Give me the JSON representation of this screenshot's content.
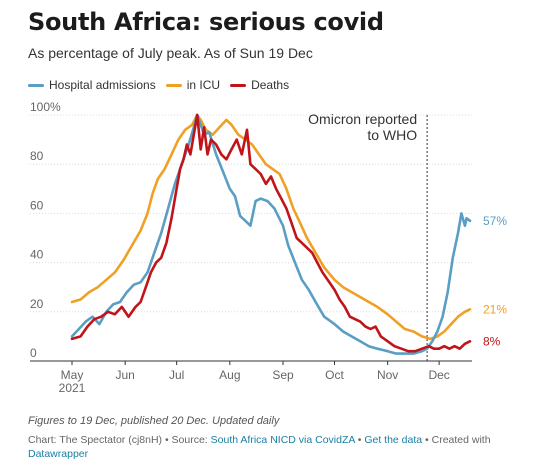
{
  "title": "South Africa: serious covid",
  "subtitle": "As percentage of July peak. As of Sun 19 Dec",
  "footer": {
    "note": "Figures to 19 Dec, published 20 Dec. Updated daily",
    "chart_by": "Chart: The Spectator (cj8nH)",
    "sep1": " • Source: ",
    "source": "South Africa NICD via CovidZA",
    "sep2": " • ",
    "get_data": "Get the data",
    "sep3": " • Created with ",
    "datawrapper": "Datawrapper"
  },
  "chart_data": {
    "type": "line",
    "xlabel": "",
    "ylabel": "",
    "x_range": [
      "2021-05-01",
      "2021-12-19"
    ],
    "ylim": [
      0,
      100
    ],
    "y_ticks": [
      0,
      20,
      40,
      60,
      80,
      100
    ],
    "y_tick_labels": [
      "0",
      "20",
      "40",
      "60",
      "80",
      "100%"
    ],
    "x_ticks": [
      {
        "date": "2021-05-01",
        "label": "May",
        "sublabel": "2021"
      },
      {
        "date": "2021-06-01",
        "label": "Jun",
        "sublabel": ""
      },
      {
        "date": "2021-07-01",
        "label": "Jul",
        "sublabel": ""
      },
      {
        "date": "2021-08-01",
        "label": "Aug",
        "sublabel": ""
      },
      {
        "date": "2021-09-01",
        "label": "Sep",
        "sublabel": ""
      },
      {
        "date": "2021-10-01",
        "label": "Oct",
        "sublabel": ""
      },
      {
        "date": "2021-11-01",
        "label": "Nov",
        "sublabel": ""
      },
      {
        "date": "2021-12-01",
        "label": "Dec",
        "sublabel": ""
      }
    ],
    "grid": "horizontal",
    "legend_position": "top-left",
    "annotation": {
      "date": "2021-11-24",
      "text_line1": "Omicron reported",
      "text_line2": "to WHO"
    },
    "series": [
      {
        "name": "Hospital admissions",
        "color": "#5a9ec4",
        "end_label": "57%",
        "points": [
          [
            "2021-05-01",
            10
          ],
          [
            "2021-05-05",
            13
          ],
          [
            "2021-05-09",
            16
          ],
          [
            "2021-05-13",
            18
          ],
          [
            "2021-05-17",
            15
          ],
          [
            "2021-05-21",
            20
          ],
          [
            "2021-05-25",
            23
          ],
          [
            "2021-05-29",
            24
          ],
          [
            "2021-06-02",
            28
          ],
          [
            "2021-06-06",
            31
          ],
          [
            "2021-06-10",
            32
          ],
          [
            "2021-06-14",
            36
          ],
          [
            "2021-06-18",
            44
          ],
          [
            "2021-06-22",
            52
          ],
          [
            "2021-06-26",
            62
          ],
          [
            "2021-06-30",
            72
          ],
          [
            "2021-07-04",
            80
          ],
          [
            "2021-07-08",
            88
          ],
          [
            "2021-07-11",
            95
          ],
          [
            "2021-07-13",
            100
          ],
          [
            "2021-07-15",
            96
          ],
          [
            "2021-07-17",
            92
          ],
          [
            "2021-07-20",
            93
          ],
          [
            "2021-07-24",
            84
          ],
          [
            "2021-07-28",
            77
          ],
          [
            "2021-08-01",
            70
          ],
          [
            "2021-08-04",
            67
          ],
          [
            "2021-08-07",
            59
          ],
          [
            "2021-08-10",
            57
          ],
          [
            "2021-08-13",
            55
          ],
          [
            "2021-08-16",
            65
          ],
          [
            "2021-08-19",
            66
          ],
          [
            "2021-08-23",
            65
          ],
          [
            "2021-08-27",
            62
          ],
          [
            "2021-09-01",
            55
          ],
          [
            "2021-09-04",
            47
          ],
          [
            "2021-09-08",
            40
          ],
          [
            "2021-09-12",
            33
          ],
          [
            "2021-09-16",
            29
          ],
          [
            "2021-09-20",
            24
          ],
          [
            "2021-09-25",
            18
          ],
          [
            "2021-10-01",
            15
          ],
          [
            "2021-10-06",
            12
          ],
          [
            "2021-10-11",
            10
          ],
          [
            "2021-10-16",
            8
          ],
          [
            "2021-10-21",
            6
          ],
          [
            "2021-10-26",
            5
          ],
          [
            "2021-11-01",
            4
          ],
          [
            "2021-11-06",
            3
          ],
          [
            "2021-11-11",
            3
          ],
          [
            "2021-11-16",
            3
          ],
          [
            "2021-11-21",
            4
          ],
          [
            "2021-11-24",
            5
          ],
          [
            "2021-11-27",
            8
          ],
          [
            "2021-11-30",
            12
          ],
          [
            "2021-12-03",
            18
          ],
          [
            "2021-12-06",
            28
          ],
          [
            "2021-12-09",
            42
          ],
          [
            "2021-12-12",
            52
          ],
          [
            "2021-12-14",
            60
          ],
          [
            "2021-12-16",
            55
          ],
          [
            "2021-12-17",
            58
          ],
          [
            "2021-12-19",
            57
          ]
        ]
      },
      {
        "name": "in ICU",
        "color": "#f0a024",
        "end_label": "21%",
        "points": [
          [
            "2021-05-01",
            24
          ],
          [
            "2021-05-06",
            25
          ],
          [
            "2021-05-11",
            28
          ],
          [
            "2021-05-16",
            30
          ],
          [
            "2021-05-21",
            33
          ],
          [
            "2021-05-26",
            36
          ],
          [
            "2021-05-31",
            41
          ],
          [
            "2021-06-05",
            47
          ],
          [
            "2021-06-10",
            53
          ],
          [
            "2021-06-14",
            60
          ],
          [
            "2021-06-17",
            68
          ],
          [
            "2021-06-20",
            74
          ],
          [
            "2021-06-24",
            78
          ],
          [
            "2021-06-28",
            84
          ],
          [
            "2021-07-02",
            90
          ],
          [
            "2021-07-06",
            94
          ],
          [
            "2021-07-10",
            96
          ],
          [
            "2021-07-13",
            100
          ],
          [
            "2021-07-15",
            98
          ],
          [
            "2021-07-18",
            94
          ],
          [
            "2021-07-22",
            92
          ],
          [
            "2021-07-26",
            95
          ],
          [
            "2021-07-30",
            98
          ],
          [
            "2021-08-02",
            96
          ],
          [
            "2021-08-06",
            92
          ],
          [
            "2021-08-10",
            90
          ],
          [
            "2021-08-14",
            88
          ],
          [
            "2021-08-18",
            84
          ],
          [
            "2021-08-22",
            80
          ],
          [
            "2021-08-26",
            78
          ],
          [
            "2021-08-30",
            76
          ],
          [
            "2021-09-03",
            70
          ],
          [
            "2021-09-07",
            62
          ],
          [
            "2021-09-11",
            56
          ],
          [
            "2021-09-15",
            50
          ],
          [
            "2021-09-20",
            44
          ],
          [
            "2021-09-25",
            38
          ],
          [
            "2021-10-01",
            33
          ],
          [
            "2021-10-06",
            30
          ],
          [
            "2021-10-11",
            28
          ],
          [
            "2021-10-16",
            26
          ],
          [
            "2021-10-21",
            24
          ],
          [
            "2021-10-26",
            22
          ],
          [
            "2021-11-01",
            19
          ],
          [
            "2021-11-06",
            16
          ],
          [
            "2021-11-11",
            13
          ],
          [
            "2021-11-16",
            12
          ],
          [
            "2021-11-21",
            10
          ],
          [
            "2021-11-26",
            9
          ],
          [
            "2021-11-30",
            10
          ],
          [
            "2021-12-04",
            12
          ],
          [
            "2021-12-08",
            15
          ],
          [
            "2021-12-12",
            18
          ],
          [
            "2021-12-16",
            20
          ],
          [
            "2021-12-19",
            21
          ]
        ]
      },
      {
        "name": "Deaths",
        "color": "#c0141b",
        "end_label": "8%",
        "points": [
          [
            "2021-05-01",
            9
          ],
          [
            "2021-05-06",
            10
          ],
          [
            "2021-05-10",
            14
          ],
          [
            "2021-05-14",
            17
          ],
          [
            "2021-05-18",
            18
          ],
          [
            "2021-05-22",
            20
          ],
          [
            "2021-05-26",
            19
          ],
          [
            "2021-05-30",
            22
          ],
          [
            "2021-06-03",
            18
          ],
          [
            "2021-06-07",
            22
          ],
          [
            "2021-06-10",
            24
          ],
          [
            "2021-06-13",
            30
          ],
          [
            "2021-06-16",
            36
          ],
          [
            "2021-06-19",
            40
          ],
          [
            "2021-06-22",
            42
          ],
          [
            "2021-06-25",
            48
          ],
          [
            "2021-06-28",
            58
          ],
          [
            "2021-07-01",
            70
          ],
          [
            "2021-07-03",
            78
          ],
          [
            "2021-07-05",
            82
          ],
          [
            "2021-07-07",
            88
          ],
          [
            "2021-07-09",
            84
          ],
          [
            "2021-07-11",
            92
          ],
          [
            "2021-07-13",
            100
          ],
          [
            "2021-07-15",
            86
          ],
          [
            "2021-07-17",
            95
          ],
          [
            "2021-07-19",
            84
          ],
          [
            "2021-07-21",
            90
          ],
          [
            "2021-07-24",
            88
          ],
          [
            "2021-07-27",
            84
          ],
          [
            "2021-07-30",
            82
          ],
          [
            "2021-08-02",
            86
          ],
          [
            "2021-08-05",
            90
          ],
          [
            "2021-08-08",
            84
          ],
          [
            "2021-08-11",
            94
          ],
          [
            "2021-08-13",
            80
          ],
          [
            "2021-08-16",
            78
          ],
          [
            "2021-08-19",
            76
          ],
          [
            "2021-08-22",
            72
          ],
          [
            "2021-08-25",
            75
          ],
          [
            "2021-08-28",
            70
          ],
          [
            "2021-08-31",
            66
          ],
          [
            "2021-09-03",
            62
          ],
          [
            "2021-09-06",
            56
          ],
          [
            "2021-09-09",
            50
          ],
          [
            "2021-09-12",
            48
          ],
          [
            "2021-09-15",
            46
          ],
          [
            "2021-09-18",
            44
          ],
          [
            "2021-09-21",
            40
          ],
          [
            "2021-09-24",
            36
          ],
          [
            "2021-09-27",
            33
          ],
          [
            "2021-10-01",
            29
          ],
          [
            "2021-10-04",
            25
          ],
          [
            "2021-10-07",
            22
          ],
          [
            "2021-10-10",
            18
          ],
          [
            "2021-10-13",
            17
          ],
          [
            "2021-10-16",
            16
          ],
          [
            "2021-10-19",
            14
          ],
          [
            "2021-10-22",
            13
          ],
          [
            "2021-10-25",
            14
          ],
          [
            "2021-10-28",
            10
          ],
          [
            "2021-11-01",
            8
          ],
          [
            "2021-11-05",
            6
          ],
          [
            "2021-11-09",
            5
          ],
          [
            "2021-11-13",
            4
          ],
          [
            "2021-11-17",
            4
          ],
          [
            "2021-11-21",
            5
          ],
          [
            "2021-11-25",
            6
          ],
          [
            "2021-11-28",
            5
          ],
          [
            "2021-12-01",
            5
          ],
          [
            "2021-12-04",
            6
          ],
          [
            "2021-12-07",
            5
          ],
          [
            "2021-12-10",
            6
          ],
          [
            "2021-12-13",
            5
          ],
          [
            "2021-12-16",
            7
          ],
          [
            "2021-12-19",
            8
          ]
        ]
      }
    ]
  }
}
